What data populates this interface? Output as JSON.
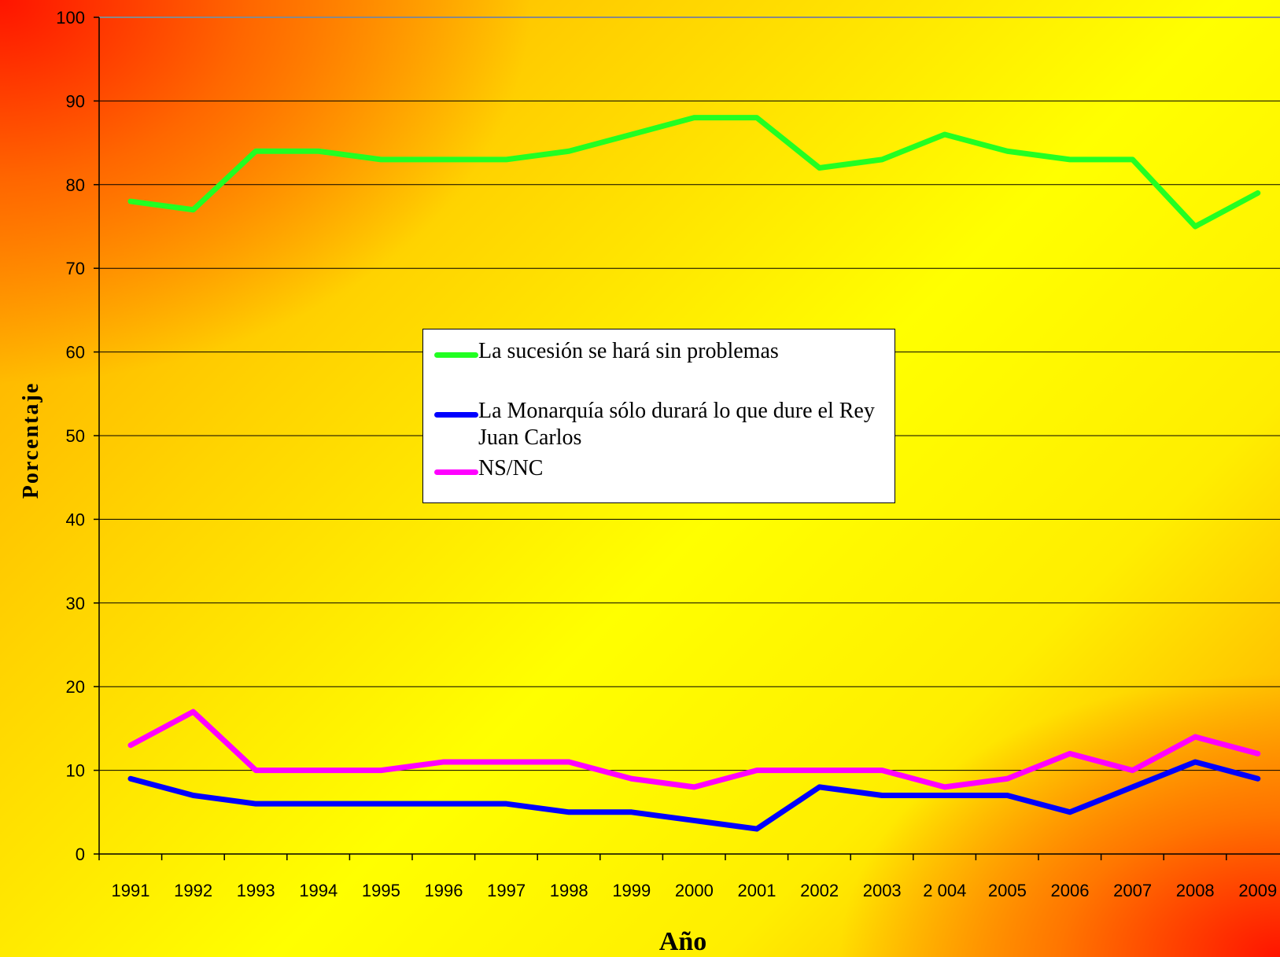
{
  "chart_data": {
    "type": "line",
    "xlabel": "Año",
    "ylabel": "Porcentaje",
    "ylim": [
      0,
      100
    ],
    "yticks": [
      0,
      10,
      20,
      30,
      40,
      50,
      60,
      70,
      80,
      90,
      100
    ],
    "categories": [
      "1991",
      "1992",
      "1993",
      "1994",
      "1995",
      "1996",
      "1997",
      "1998",
      "1999",
      "2000",
      "2001",
      "2002",
      "2003",
      "2 004",
      "2005",
      "2006",
      "2007",
      "2008",
      "2009"
    ],
    "grid": true,
    "legend_position": "center",
    "series": [
      {
        "name": "La sucesión se hará sin problemas",
        "color": "#22ff22",
        "values": [
          78,
          77,
          84,
          84,
          83,
          83,
          83,
          84,
          86,
          88,
          88,
          82,
          83,
          86,
          84,
          83,
          83,
          75,
          79
        ]
      },
      {
        "name": "La Monarquía sólo durará lo que dure el Rey Juan Carlos",
        "color": "#0000ff",
        "values": [
          9,
          7,
          6,
          6,
          6,
          6,
          6,
          5,
          5,
          4,
          3,
          8,
          7,
          7,
          7,
          5,
          8,
          11,
          9
        ]
      },
      {
        "name": "NS/NC",
        "color": "#ff00ff",
        "values": [
          13,
          17,
          10,
          10,
          10,
          11,
          11,
          11,
          9,
          8,
          10,
          10,
          10,
          8,
          9,
          12,
          10,
          14,
          12
        ]
      }
    ]
  }
}
